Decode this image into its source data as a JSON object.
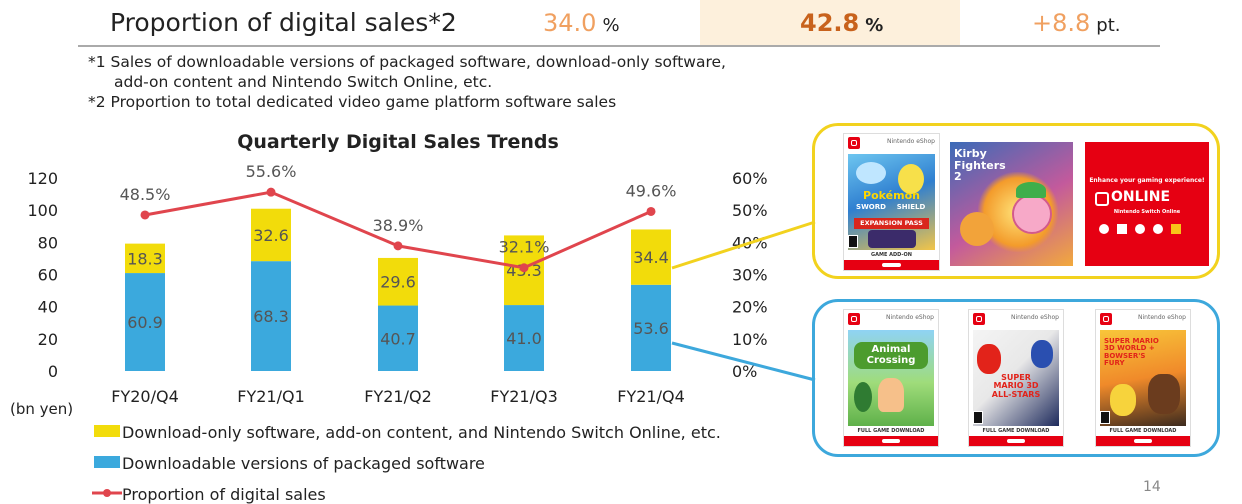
{
  "header": {
    "label": "Proportion of digital sales*2",
    "prev_value": "34.0",
    "prev_unit": "%",
    "current_value": "42.8",
    "current_unit": "%",
    "change_value": "+8.8",
    "change_unit": "pt."
  },
  "notes": [
    "*1 Sales of downloadable versions of packaged software, download-only software,",
    "add-on content and Nintendo Switch Online, etc.",
    "*2 Proportion to total dedicated video game platform software sales"
  ],
  "chart_data": {
    "type": "bar",
    "title": "Quarterly Digital Sales Trends",
    "categories": [
      "FY20/Q4",
      "FY21/Q1",
      "FY21/Q2",
      "FY21/Q3",
      "FY21/Q4"
    ],
    "series": [
      {
        "name": "Downloadable versions of packaged software",
        "kind": "bar",
        "stack": "digital",
        "color": "#3ba9dd",
        "values": [
          60.9,
          68.3,
          40.7,
          41.0,
          53.6
        ],
        "labels": [
          "60.9",
          "68.3",
          "40.7",
          "41.0",
          "53.6"
        ]
      },
      {
        "name": "Download-only software, add-on content, and Nintendo Switch Online, etc.",
        "kind": "bar",
        "stack": "digital",
        "color": "#f2dc0b",
        "values": [
          18.3,
          32.6,
          29.6,
          43.3,
          34.4
        ],
        "labels": [
          "18.3",
          "32.6",
          "29.6",
          "43.3",
          "34.4"
        ]
      },
      {
        "name": "Proportion of digital sales",
        "kind": "line",
        "axis": "right",
        "color": "#e0454d",
        "values": [
          48.5,
          55.6,
          38.9,
          32.1,
          49.6
        ],
        "labels": [
          "48.5%",
          "55.6%",
          "38.9%",
          "32.1%",
          "49.6%"
        ]
      }
    ],
    "y_left": {
      "min": 0,
      "max": 120,
      "ticks": [
        "0",
        "20",
        "40",
        "60",
        "80",
        "100",
        "120"
      ],
      "unit_label": "(bn yen)"
    },
    "y_right": {
      "min": 0,
      "max": 60,
      "ticks": [
        "0%",
        "10%",
        "20%",
        "30%",
        "40%",
        "50%",
        "60%"
      ]
    },
    "grid": false,
    "legend_position": "bottom-left"
  },
  "legend": [
    {
      "label": "Download-only software, add-on content, and Nintendo Switch Online, etc."
    },
    {
      "label": "Downloadable versions of packaged software"
    },
    {
      "label": "Proportion of digital sales"
    }
  ],
  "art": {
    "pokemon_title": "Pokémon",
    "pokemon_sword": "SWORD",
    "pokemon_shield": "SHIELD",
    "pokemon_pass": "EXPANSION PASS",
    "pokemon_band": "GAME ADD-ON",
    "kirby_title": "Kirby Fighters 2",
    "online_tagline": "Enhance your gaming experience!",
    "online_name": "ONLINE",
    "online_sub": "Nintendo Switch Online",
    "eshop": "Nintendo eShop",
    "animal_title": "Animal Crossing",
    "mario_allstars_title": "SUPER MARIO 3D ALL-STARS",
    "mario_3dworld_title": "SUPER MARIO 3D WORLD + BOWSER'S FURY",
    "full_game": "FULL GAME DOWNLOAD"
  },
  "page_number": "14"
}
